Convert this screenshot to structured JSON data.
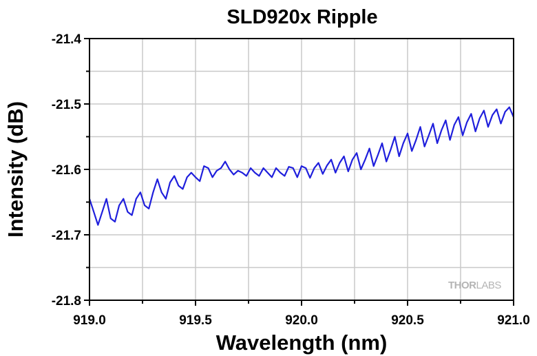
{
  "chart_data": {
    "type": "line",
    "title": "SLD920x Ripple",
    "xlabel": "Wavelength (nm)",
    "ylabel": "Intensity (dB)",
    "xlim": [
      919.0,
      921.0
    ],
    "ylim": [
      -21.8,
      -21.4
    ],
    "xticks": [
      919.0,
      919.5,
      920.0,
      920.5,
      921.0
    ],
    "xtick_labels": [
      "919.0",
      "919.5",
      "920.0",
      "920.5",
      "921.0"
    ],
    "yticks": [
      -21.4,
      -21.5,
      -21.6,
      -21.7,
      -21.8
    ],
    "ytick_labels": [
      "-21.4",
      "-21.5",
      "-21.6",
      "-21.7",
      "-21.8"
    ],
    "grid": true,
    "series": [
      {
        "color": "#1f1fdc",
        "x": [
          919.0,
          919.02,
          919.04,
          919.06,
          919.08,
          919.1,
          919.12,
          919.14,
          919.16,
          919.18,
          919.2,
          919.22,
          919.24,
          919.26,
          919.28,
          919.3,
          919.32,
          919.34,
          919.36,
          919.38,
          919.4,
          919.42,
          919.44,
          919.46,
          919.48,
          919.5,
          919.52,
          919.54,
          919.56,
          919.58,
          919.6,
          919.62,
          919.64,
          919.66,
          919.68,
          919.7,
          919.72,
          919.74,
          919.76,
          919.78,
          919.8,
          919.82,
          919.84,
          919.86,
          919.88,
          919.9,
          919.92,
          919.94,
          919.96,
          919.98,
          920.0,
          920.02,
          920.04,
          920.06,
          920.08,
          920.1,
          920.12,
          920.14,
          920.16,
          920.18,
          920.2,
          920.22,
          920.24,
          920.26,
          920.28,
          920.3,
          920.32,
          920.34,
          920.36,
          920.38,
          920.4,
          920.42,
          920.44,
          920.46,
          920.48,
          920.5,
          920.52,
          920.54,
          920.56,
          920.58,
          920.6,
          920.62,
          920.64,
          920.66,
          920.68,
          920.7,
          920.72,
          920.74,
          920.76,
          920.78,
          920.8,
          920.82,
          920.84,
          920.86,
          920.88,
          920.9,
          920.92,
          920.94,
          920.96,
          920.98,
          921.0
        ],
        "y": [
          -21.645,
          -21.665,
          -21.685,
          -21.665,
          -21.645,
          -21.675,
          -21.68,
          -21.655,
          -21.645,
          -21.665,
          -21.67,
          -21.645,
          -21.635,
          -21.655,
          -21.66,
          -21.635,
          -21.615,
          -21.635,
          -21.645,
          -21.62,
          -21.61,
          -21.625,
          -21.63,
          -21.612,
          -21.605,
          -21.612,
          -21.618,
          -21.595,
          -21.598,
          -21.612,
          -21.602,
          -21.598,
          -21.588,
          -21.6,
          -21.608,
          -21.602,
          -21.605,
          -21.61,
          -21.598,
          -21.605,
          -21.61,
          -21.598,
          -21.605,
          -21.612,
          -21.598,
          -21.605,
          -21.61,
          -21.596,
          -21.598,
          -21.612,
          -21.595,
          -21.598,
          -21.613,
          -21.598,
          -21.59,
          -21.607,
          -21.594,
          -21.585,
          -21.605,
          -21.59,
          -21.58,
          -21.603,
          -21.585,
          -21.575,
          -21.6,
          -21.585,
          -21.568,
          -21.595,
          -21.578,
          -21.56,
          -21.588,
          -21.57,
          -21.55,
          -21.58,
          -21.56,
          -21.545,
          -21.572,
          -21.555,
          -21.535,
          -21.565,
          -21.548,
          -21.53,
          -21.56,
          -21.54,
          -21.525,
          -21.555,
          -21.532,
          -21.52,
          -21.548,
          -21.528,
          -21.515,
          -21.542,
          -21.522,
          -21.51,
          -21.535,
          -21.517,
          -21.508,
          -21.53,
          -21.512,
          -21.505,
          -21.52
        ]
      }
    ]
  },
  "watermark": {
    "brand_prefix": "THOR",
    "brand_suffix": "LABS"
  }
}
